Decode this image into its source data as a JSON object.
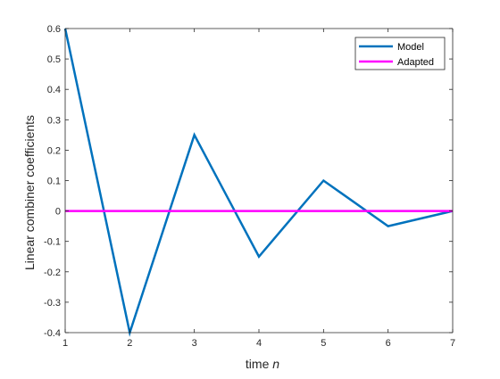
{
  "chart_data": {
    "type": "line",
    "title": "",
    "xlabel": "time",
    "xlabel_italic": "n",
    "ylabel": "Linear combiner coefficients",
    "xlim": [
      1,
      7
    ],
    "ylim": [
      -0.4,
      0.6
    ],
    "xticks": [
      1,
      2,
      3,
      4,
      5,
      6,
      7
    ],
    "xtick_labels": [
      "1",
      "2",
      "3",
      "4",
      "5",
      "6",
      "7"
    ],
    "yticks": [
      0.6,
      0.5,
      0.4,
      0.3,
      0.2,
      0.1,
      0,
      -0.1,
      -0.2,
      -0.3,
      -0.4
    ],
    "ytick_labels": [
      "0.6",
      "0.5",
      "0.4",
      "0.3",
      "0.2",
      "0.1",
      "0",
      "-0.1",
      "-0.2",
      "-0.3",
      "-0.4"
    ],
    "grid": false,
    "legend_position": "top-right",
    "x": [
      1,
      2,
      3,
      4,
      5,
      6,
      7
    ],
    "series": [
      {
        "name": "Model",
        "color": "#0072BD",
        "values": [
          0.6,
          -0.4,
          0.25,
          -0.15,
          0.1,
          -0.05,
          0
        ]
      },
      {
        "name": "Adapted",
        "color": "#FF00FF",
        "values": [
          0,
          0,
          0,
          0,
          0,
          0,
          0
        ]
      }
    ]
  }
}
